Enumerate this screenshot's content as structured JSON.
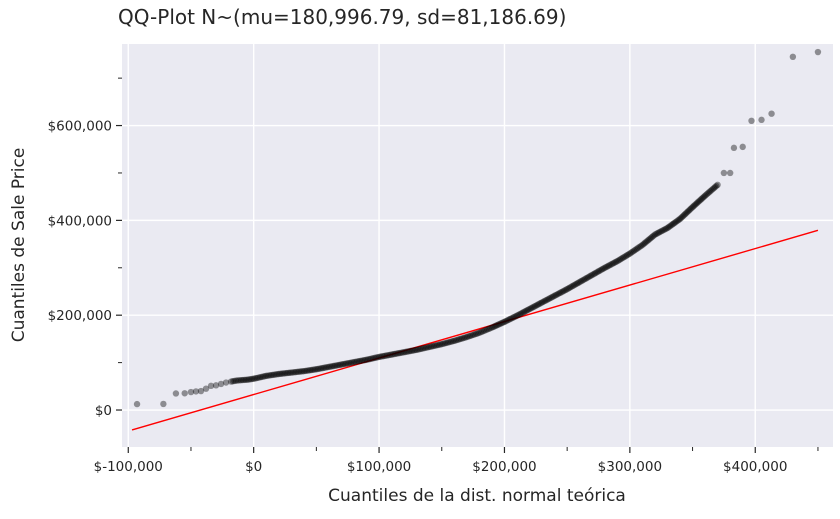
{
  "chart_data": {
    "type": "scatter",
    "title": "QQ-Plot N~(mu=180,996.79, sd=81,186.69)",
    "xlabel": "Cuantiles de la dist. normal teórica",
    "ylabel": "Cuantiles de Sale Price",
    "xlim": [
      -105000,
      462000
    ],
    "ylim": [
      -78000,
      772000
    ],
    "x_ticks": [
      {
        "value": -100000,
        "label": "$-100,000"
      },
      {
        "value": 0,
        "label": "$0"
      },
      {
        "value": 100000,
        "label": "$100,000"
      },
      {
        "value": 200000,
        "label": "$200,000"
      },
      {
        "value": 300000,
        "label": "$300,000"
      },
      {
        "value": 400000,
        "label": "$400,000"
      }
    ],
    "x_minor_ticks": [
      -50000,
      50000,
      150000,
      250000,
      350000,
      450000
    ],
    "y_ticks": [
      {
        "value": 0,
        "label": "$0"
      },
      {
        "value": 200000,
        "label": "$200,000"
      },
      {
        "value": 400000,
        "label": "$400,000"
      },
      {
        "value": 600000,
        "label": "$600,000"
      }
    ],
    "y_minor_ticks": [
      100000,
      300000,
      500000,
      700000
    ],
    "grid": true,
    "colors": {
      "background": "#eaeaf2",
      "grid": "#ffffff",
      "points": "#000000",
      "reference_line": "#ff0000"
    },
    "reference_line": {
      "x": [
        -97000,
        450000
      ],
      "y": [
        -42000,
        379000
      ]
    },
    "distribution_points": [
      [
        -93000,
        12500
      ],
      [
        -72000,
        12800
      ],
      [
        -62000,
        34900
      ],
      [
        -55000,
        35300
      ],
      [
        -50000,
        37900
      ],
      [
        -46000,
        39300
      ],
      [
        -42000,
        40000
      ],
      [
        -38000,
        45000
      ],
      [
        -34000,
        51000
      ],
      [
        -30000,
        52000
      ],
      [
        -26000,
        55000
      ],
      [
        -22000,
        58000
      ],
      [
        -18000,
        60000
      ],
      [
        -14000,
        62000
      ],
      [
        -10000,
        63000
      ],
      [
        -5000,
        64000
      ],
      [
        0,
        66000
      ],
      [
        10000,
        72000
      ],
      [
        20000,
        76000
      ],
      [
        30000,
        79000
      ],
      [
        40000,
        82000
      ],
      [
        50000,
        86000
      ],
      [
        60000,
        91000
      ],
      [
        70000,
        96000
      ],
      [
        80000,
        101000
      ],
      [
        90000,
        106000
      ],
      [
        100000,
        112000
      ],
      [
        110000,
        117000
      ],
      [
        120000,
        122000
      ],
      [
        130000,
        127000
      ],
      [
        140000,
        133000
      ],
      [
        150000,
        139000
      ],
      [
        160000,
        146000
      ],
      [
        170000,
        154000
      ],
      [
        180000,
        163000
      ],
      [
        190000,
        174000
      ],
      [
        200000,
        186000
      ],
      [
        210000,
        199000
      ],
      [
        220000,
        213000
      ],
      [
        230000,
        227000
      ],
      [
        240000,
        241000
      ],
      [
        250000,
        255000
      ],
      [
        260000,
        270000
      ],
      [
        270000,
        285000
      ],
      [
        280000,
        300000
      ],
      [
        290000,
        314000
      ],
      [
        300000,
        330000
      ],
      [
        310000,
        348000
      ],
      [
        320000,
        370000
      ],
      [
        330000,
        384000
      ],
      [
        340000,
        403000
      ],
      [
        350000,
        428000
      ],
      [
        360000,
        452000
      ],
      [
        370000,
        475000
      ],
      [
        375000,
        500000
      ],
      [
        380000,
        500000
      ],
      [
        383000,
        553000
      ],
      [
        390000,
        555000
      ],
      [
        397000,
        610000
      ],
      [
        405000,
        612000
      ],
      [
        413000,
        625000
      ],
      [
        430000,
        745000
      ],
      [
        450000,
        755000
      ]
    ]
  }
}
